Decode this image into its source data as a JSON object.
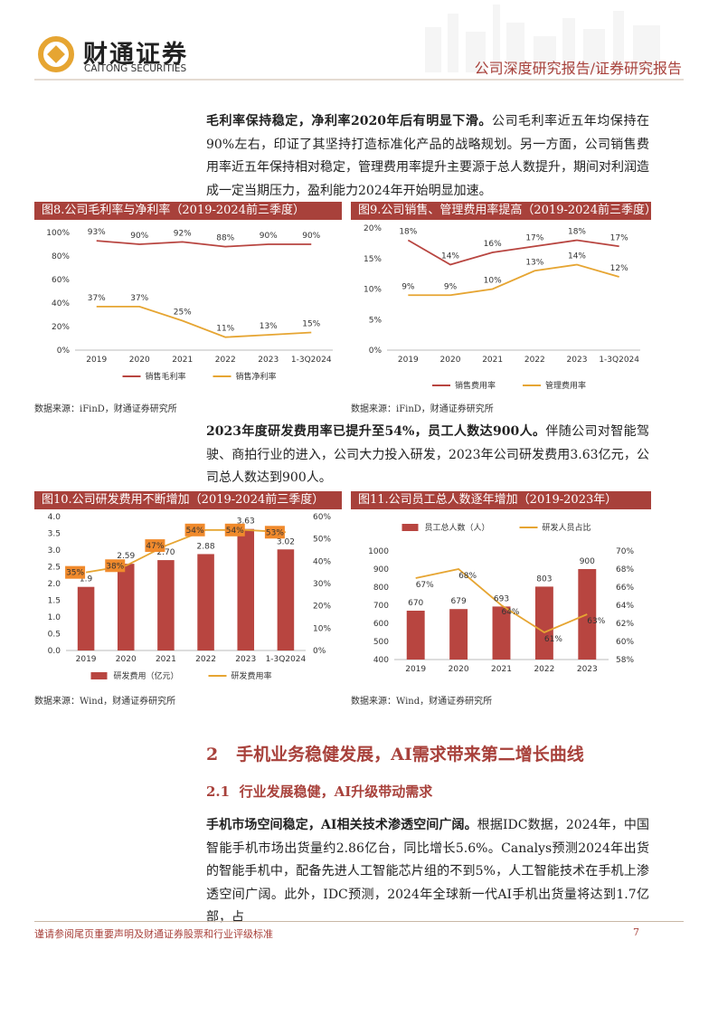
{
  "header": {
    "brand": "财通证券",
    "brand_en": "CAITONG SECURITIES",
    "report_type": "公司深度研究报告/证券研究报告"
  },
  "paragraphs": [
    {
      "lead": "毛利率保持稳定，净利率2020年后有明显下滑。",
      "body": "公司毛利率近五年均保持在90%左右，印证了其坚持打造标准化产品的战略规划。另一方面，公司销售费用率近五年保持相对稳定，管理费用率提升主要源于总人数提升，期间对利润造成一定当期压力，盈利能力2024年开始明显加速。"
    },
    {
      "lead": "2023年度研发费用率已提升至54%，员工人数达900人。",
      "body": "伴随公司对智能驾驶、商拍行业的进入，公司大力投入研发，2023年公司研发费用3.63亿元，公司总人数达到900人。"
    },
    {
      "lead": "手机市场空间稳定，AI相关技术渗透空间广阔。",
      "body": "根据IDC数据，2024年，中国智能手机市场出货量约2.86亿台，同比增长5.6%。Canalys预测2024年出货的智能手机中，配备先进人工智能芯片组的不到5%，人工智能技术在手机上渗透空间广阔。此外，IDC预测，2024年全球新一代AI手机出货量将达到1.7亿部，占"
    }
  ],
  "figures": [
    {
      "title": "图8.公司毛利率与净利率（2019-2024前三季度）",
      "source": "数据来源：iFinD，财通证券研究所",
      "chart": {
        "type": "line",
        "categories": [
          "2019",
          "2020",
          "2021",
          "2022",
          "2023",
          "1-3Q2024"
        ],
        "ylim": [
          0,
          100
        ],
        "yticks": [
          {
            "value": 0,
            "label": "0%"
          },
          {
            "value": 20,
            "label": "20%"
          },
          {
            "value": 40,
            "label": "40%"
          },
          {
            "value": 60,
            "label": "60%"
          },
          {
            "value": 80,
            "label": "80%"
          },
          {
            "value": 100,
            "label": "100%"
          }
        ],
        "legend": "bottom",
        "series": [
          {
            "name": "销售毛利率",
            "type": "line",
            "color": "#b84540",
            "values": [
              93,
              90,
              92,
              88,
              90,
              90
            ],
            "value_labels": [
              "93%",
              "90%",
              "92%",
              "88%",
              "90%",
              "90%"
            ]
          },
          {
            "name": "销售净利率",
            "type": "line",
            "color": "#e6a532",
            "values": [
              37,
              37,
              25,
              11,
              13,
              15
            ],
            "value_labels": [
              "37%",
              "37%",
              "25%",
              "11%",
              "13%",
              "15%"
            ]
          }
        ]
      }
    },
    {
      "title": "图9.公司销售、管理费用率提高（2019-2024前三季度）",
      "source": "数据来源：iFinD，财通证券研究所",
      "chart": {
        "type": "line",
        "categories": [
          "2019",
          "2020",
          "2021",
          "2022",
          "2023",
          "1-3Q2024"
        ],
        "ylim": [
          0,
          20
        ],
        "yticks": [
          {
            "value": 0,
            "label": "0%"
          },
          {
            "value": 5,
            "label": "5%"
          },
          {
            "value": 10,
            "label": "10%"
          },
          {
            "value": 15,
            "label": "15%"
          },
          {
            "value": 20,
            "label": "20%"
          }
        ],
        "legend": "bottom",
        "series": [
          {
            "name": "销售费用率",
            "type": "line",
            "color": "#b84540",
            "values": [
              18,
              14,
              16,
              17,
              18,
              17
            ],
            "value_labels": [
              "18%",
              "14%",
              "16%",
              "17%",
              "18%",
              "17%"
            ]
          },
          {
            "name": "管理费用率",
            "type": "line",
            "color": "#e6a532",
            "values": [
              9,
              9,
              10,
              13,
              14,
              12
            ],
            "value_labels": [
              "9%",
              "9%",
              "10%",
              "13%",
              "14%",
              "12%"
            ]
          }
        ]
      }
    },
    {
      "title": "图10.公司研发费用不断增加（2019-2024前三季度）",
      "source": "数据来源：Wind，财通证券研究所",
      "chart": {
        "type": "bar-line",
        "categories": [
          "2019",
          "2020",
          "2021",
          "2022",
          "2023",
          "1-3Q2024"
        ],
        "ylim": [
          0,
          4
        ],
        "yticks": [
          {
            "value": 0,
            "label": "0.0"
          },
          0.5,
          {
            "value": 1,
            "label": "1.0"
          },
          1.5,
          {
            "value": 2,
            "label": "2.0"
          },
          2.5,
          {
            "value": 3,
            "label": "3.0"
          },
          3.5,
          {
            "value": 4,
            "label": "4.0"
          }
        ],
        "y2lim": [
          0,
          60
        ],
        "y2ticks": [
          {
            "value": 0,
            "label": "0%"
          },
          {
            "value": 10,
            "label": "10%"
          },
          {
            "value": 20,
            "label": "20%"
          },
          {
            "value": 30,
            "label": "30%"
          },
          {
            "value": 40,
            "label": "40%"
          },
          {
            "value": 50,
            "label": "50%"
          },
          {
            "value": 60,
            "label": "60%"
          }
        ],
        "legend": "bottom",
        "series": [
          {
            "name": "研发费用（亿元）",
            "type": "bar",
            "color": "#b84540",
            "values": [
              1.9,
              2.59,
              2.7,
              2.88,
              3.63,
              3.02
            ],
            "value_labels": [
              "1.9",
              "2.59",
              "2.70",
              "2.88",
              "3.63",
              "3.02"
            ]
          },
          {
            "name": "研发费用率",
            "type": "line",
            "axis": "y2",
            "color": "#e6a532",
            "values": [
              35,
              38,
              47,
              54,
              54,
              53
            ],
            "value_labels": [
              "35%",
              "38%",
              "47%",
              "54%",
              "54%",
              "53%"
            ]
          }
        ]
      }
    },
    {
      "title": "图11.公司员工总人数逐年增加（2019-2023年）",
      "source": "数据来源：Wind，财通证券研究所",
      "chart": {
        "type": "bar-line",
        "categories": [
          "2019",
          "2020",
          "2021",
          "2022",
          "2023"
        ],
        "ylim": [
          400,
          1000
        ],
        "yticks": [
          400,
          500,
          600,
          700,
          800,
          900,
          1000
        ],
        "y2lim": [
          58,
          70
        ],
        "y2ticks": [
          {
            "value": 58,
            "label": "58%"
          },
          {
            "value": 60,
            "label": "60%"
          },
          {
            "value": 62,
            "label": "62%"
          },
          {
            "value": 64,
            "label": "64%"
          },
          {
            "value": 66,
            "label": "66%"
          },
          {
            "value": 68,
            "label": "68%"
          },
          {
            "value": 70,
            "label": "70%"
          }
        ],
        "legend": "top",
        "series": [
          {
            "name": "员工总人数（人）",
            "type": "bar",
            "color": "#b84540",
            "values": [
              670,
              679,
              693,
              803,
              900
            ]
          },
          {
            "name": "研发人员占比",
            "type": "line",
            "axis": "y2",
            "color": "#e6a532",
            "values": [
              67,
              68,
              64,
              61,
              63
            ],
            "value_labels": [
              "67%",
              "68%",
              "64%",
              "61%",
              "63%"
            ]
          }
        ]
      }
    }
  ],
  "section": {
    "number": "2",
    "title": "手机业务稳健发展，AI需求带来第二增长曲线"
  },
  "subsection": {
    "number": "2.1",
    "title": "行业发展稳健，AI升级带动需求"
  },
  "footer": {
    "disclaimer": "谨请参阅尾页重要声明及财通证券股票和行业评级标准",
    "page": 7
  }
}
